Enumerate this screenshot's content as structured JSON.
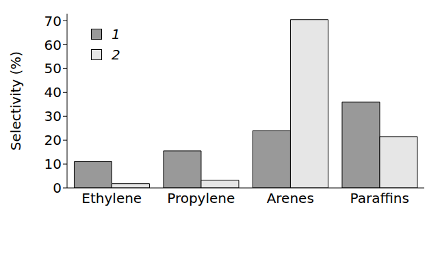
{
  "chart_data": {
    "type": "bar",
    "y_label": "Selectivity (%)",
    "categories": [
      "Ethylene",
      "Propylene",
      "Arenes",
      "Paraffins"
    ],
    "series": [
      {
        "name": "1",
        "color": "#999999",
        "values": [
          11,
          15.5,
          24,
          36
        ]
      },
      {
        "name": "2",
        "color": "#e6e6e6",
        "values": [
          1.8,
          3.2,
          70.5,
          21.5
        ]
      }
    ],
    "ylim": [
      0,
      73
    ],
    "yticks": [
      0,
      10,
      20,
      30,
      40,
      50,
      60,
      70
    ],
    "grid": false,
    "legend": "top-left"
  }
}
